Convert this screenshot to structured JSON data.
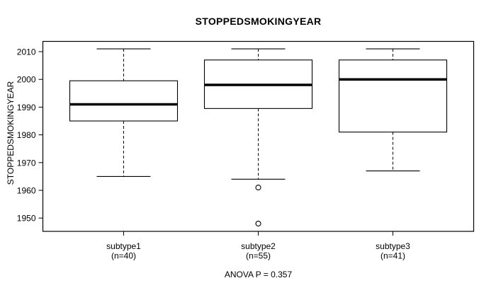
{
  "chart_data": {
    "type": "boxplot",
    "title": "STOPPEDSMOKINGYEAR",
    "ylabel": "STOPPEDSMOKINGYEAR",
    "note": "ANOVA P = 0.357",
    "ylim": [
      1945.2,
      2013.7
    ],
    "yticks": [
      1950,
      1960,
      1970,
      1980,
      1990,
      2000,
      2010
    ],
    "legend": "none",
    "grid": false,
    "groups": [
      {
        "label": "subtype1",
        "sublabel": "(n=40)",
        "n": 40,
        "whisker_low": 1965,
        "q1": 1985,
        "median": 1991,
        "q3": 1999.5,
        "whisker_high": 2011,
        "outliers": []
      },
      {
        "label": "subtype2",
        "sublabel": "(n=55)",
        "n": 55,
        "whisker_low": 1964,
        "q1": 1989.5,
        "median": 1998,
        "q3": 2007,
        "whisker_high": 2011,
        "outliers": [
          1961,
          1948
        ]
      },
      {
        "label": "subtype3",
        "sublabel": "(n=41)",
        "n": 41,
        "whisker_low": 1967,
        "q1": 1981,
        "median": 2000,
        "q3": 2007,
        "whisker_high": 2011,
        "outliers": []
      }
    ],
    "colors": {
      "line": "#000000",
      "background": "#ffffff"
    }
  }
}
